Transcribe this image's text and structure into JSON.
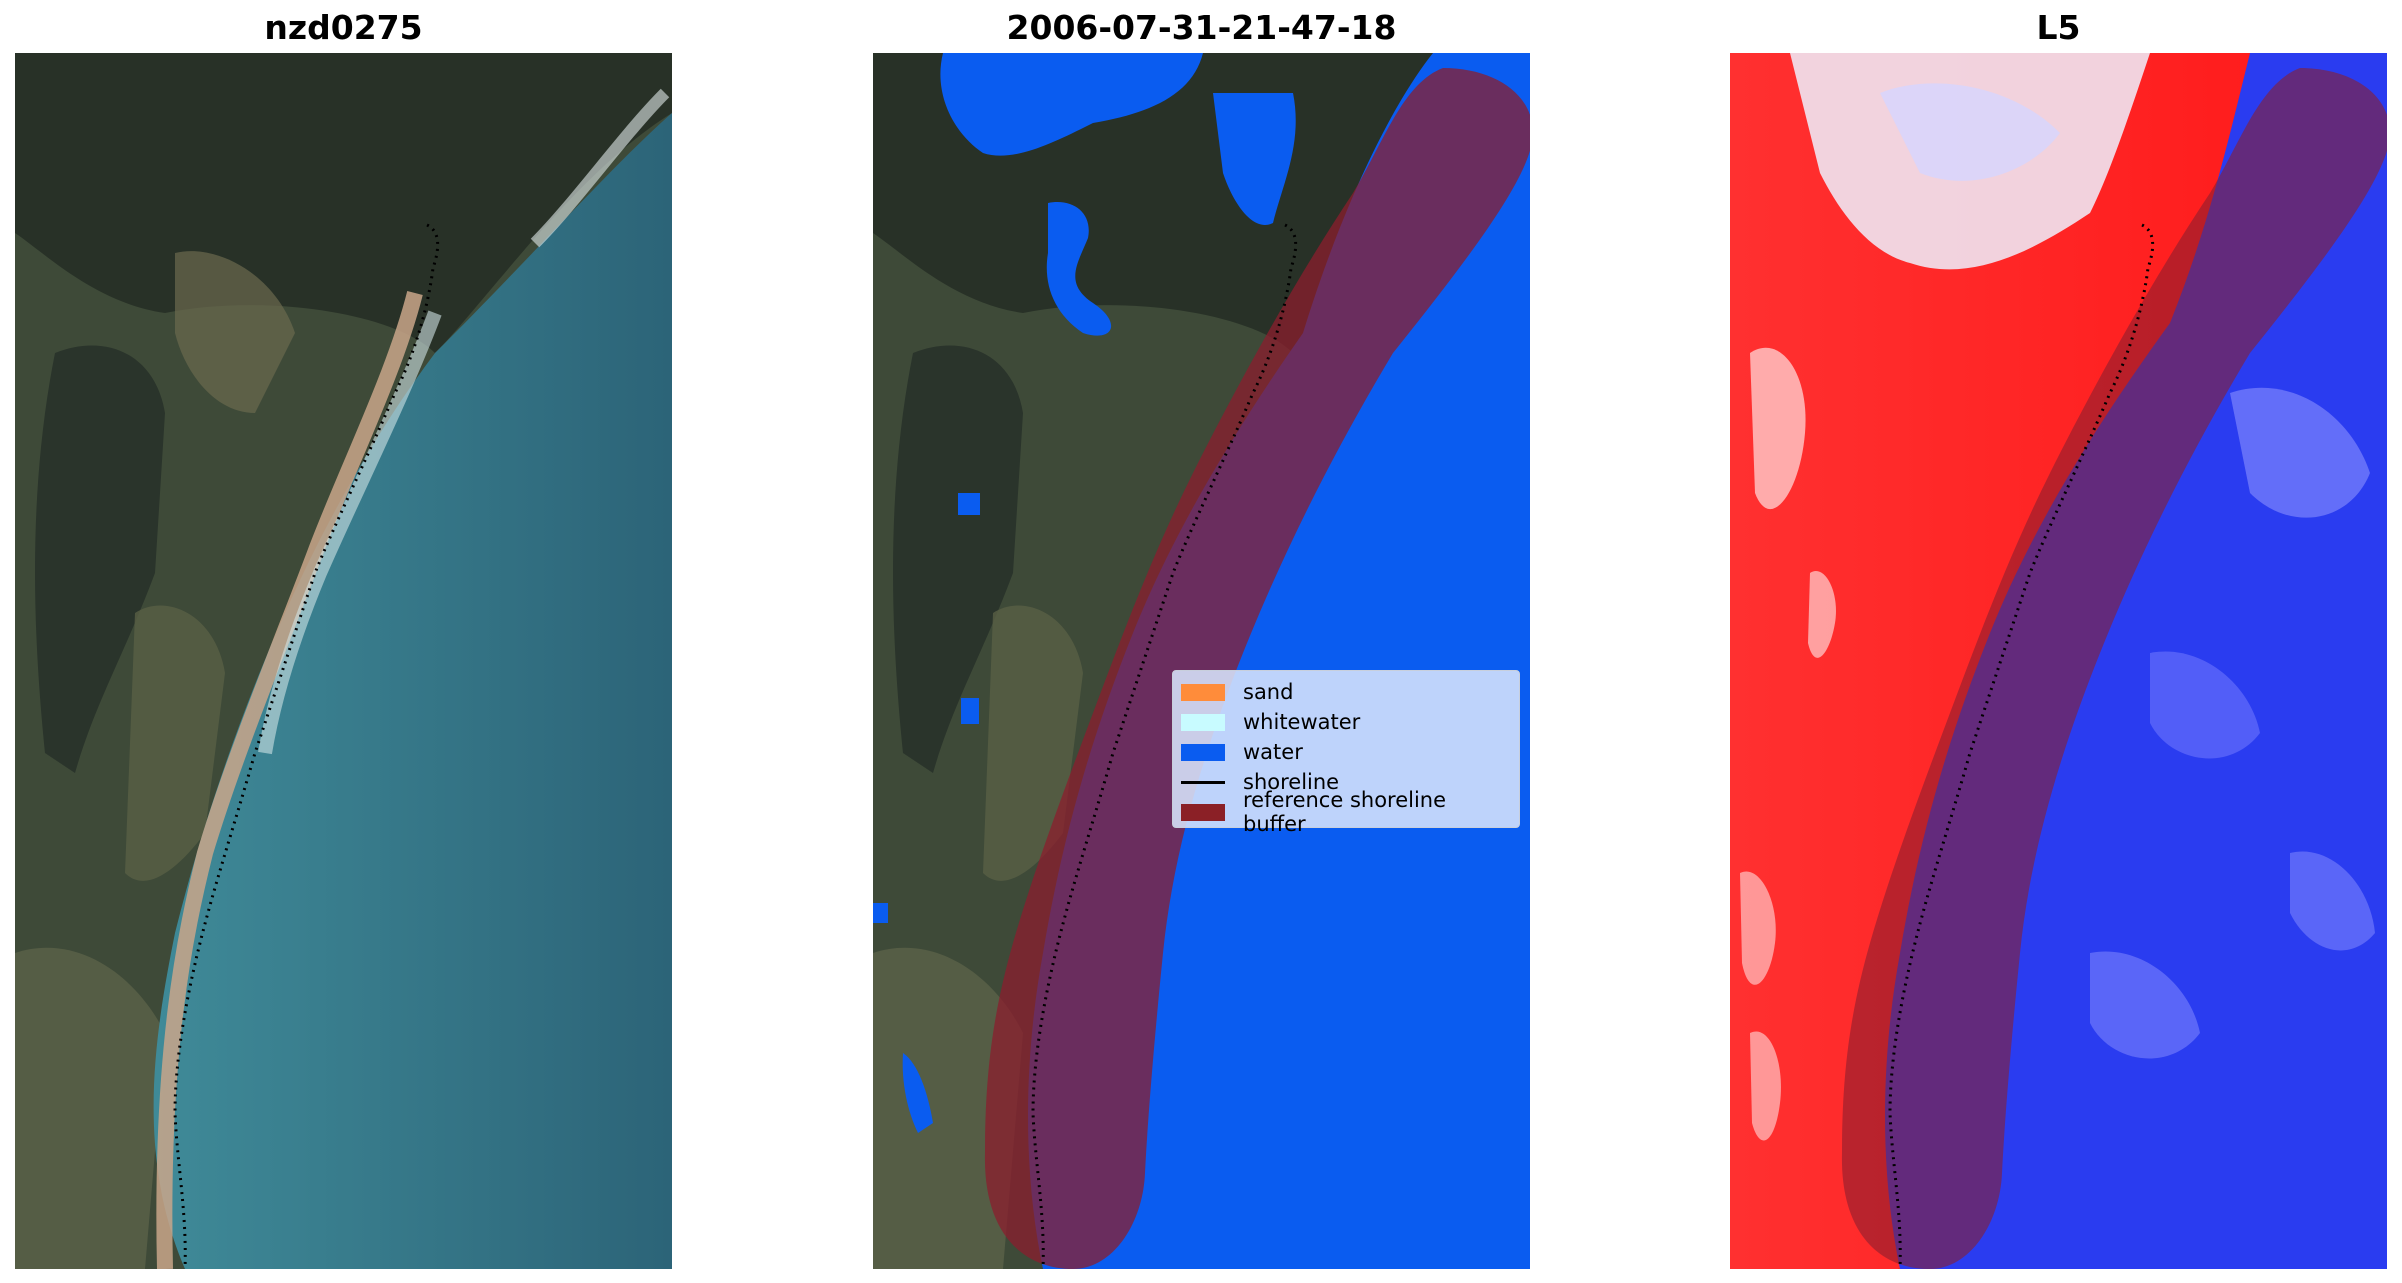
{
  "panels": [
    {
      "title": "nzd0275"
    },
    {
      "title": "2006-07-31-21-47-18"
    },
    {
      "title": "L5"
    }
  ],
  "legend": {
    "items": [
      {
        "label": "sand",
        "kind": "patch",
        "color": "#ff8c3a"
      },
      {
        "label": "whitewater",
        "kind": "patch",
        "color": "#c8fbff"
      },
      {
        "label": "water",
        "kind": "patch",
        "color": "#0a5cf0"
      },
      {
        "label": "shoreline",
        "kind": "line",
        "color": "#000000"
      },
      {
        "label": "reference shoreline buffer",
        "kind": "patch",
        "color": "#8b2026"
      }
    ]
  },
  "colors": {
    "water_class": "#0a5cf0",
    "buffer_overlay": "#8b1e2e",
    "index_positive": "#ff1a1a",
    "index_negative": "#1a2cff",
    "shoreline": "#000000"
  }
}
